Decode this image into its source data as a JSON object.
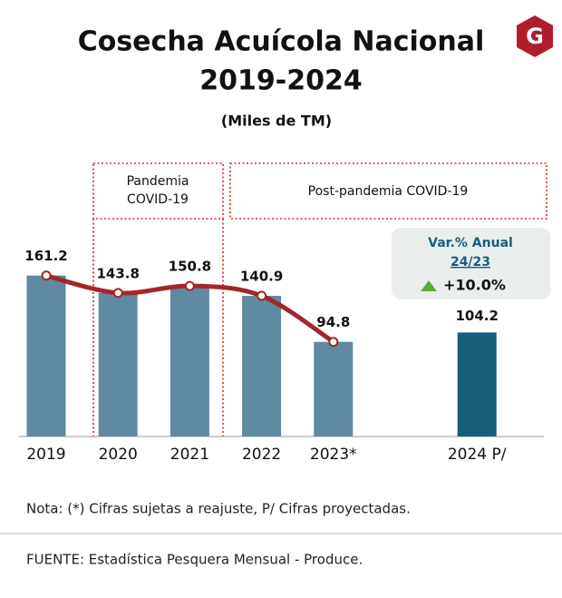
{
  "chart_data": {
    "type": "bar",
    "title": [
      "Cosecha Acuícola Nacional",
      "2019-2024"
    ],
    "subtitle": "(Miles de TM)",
    "categories": [
      "2019",
      "2020",
      "2021",
      "2022",
      "2023*",
      "2024 P/"
    ],
    "series": [
      {
        "type": "bar",
        "values": [
          161.2,
          143.8,
          150.8,
          140.9,
          94.8,
          104.2
        ],
        "colors": [
          "#5f8aa1",
          "#5f8aa1",
          "#5f8aa1",
          "#5f8aa1",
          "#5f8aa1",
          "#175f7b"
        ]
      },
      {
        "type": "line",
        "color": "#a3262a",
        "values": [
          161.2,
          143.8,
          150.8,
          140.9,
          94.8,
          null
        ]
      }
    ],
    "ylim": [
      0,
      200
    ],
    "periods": [
      {
        "label": [
          "Pandemia",
          "COVID-19"
        ]
      },
      {
        "label": [
          "Post-pandemia COVID-19"
        ]
      }
    ],
    "change_box": {
      "title": "Var.% Anual",
      "period": "24/23",
      "value": "+10.0%"
    },
    "note": "Nota: (*) Cifras sujetas a reajuste, P/ Cifras proyectadas.",
    "source": "FUENTE: Estadística Pesquera Mensual - Produce.",
    "logo": "G"
  }
}
